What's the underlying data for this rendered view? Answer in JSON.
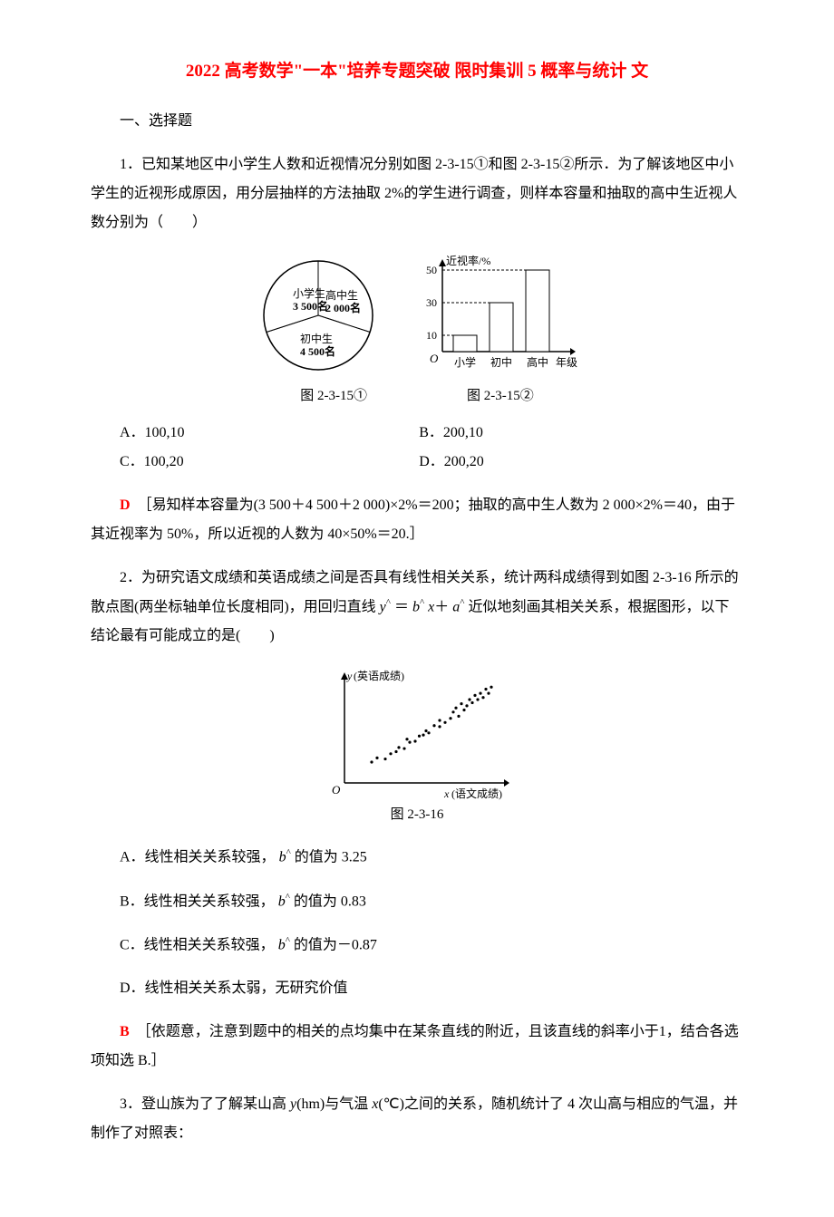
{
  "title": "2022 高考数学\"一本\"培养专题突破 限时集训 5 概率与统计 文",
  "section1": "一、选择题",
  "q1": {
    "stem": "1．已知某地区中小学生人数和近视情况分别如图 2-3-15①和图 2-3-15②所示．为了解该地区中小学生的近视形成原因，用分层抽样的方法抽取 2%的学生进行调查，则样本容量和抽取的高中生近视人数分别为（　　）",
    "pie": {
      "labels": [
        "小学生",
        "高中生",
        "初中生"
      ],
      "counts": [
        "3 500名",
        "2 000名",
        "4 500名"
      ],
      "slice_colors": [
        "#ffffff",
        "#ffffff",
        "#ffffff"
      ],
      "border_color": "#000000"
    },
    "bar": {
      "y_label": "近视率/%",
      "x_label": "年级",
      "x_categories": [
        "小学",
        "初中",
        "高中"
      ],
      "y_ticks": [
        10,
        30,
        50
      ],
      "values": [
        10,
        30,
        50
      ],
      "bar_color": "#ffffff",
      "bar_border": "#000000",
      "axis_color": "#000000",
      "grid_style": "dashed"
    },
    "caption_left": "图 2-3-15①",
    "caption_right": "图 2-3-15②",
    "choices": {
      "A": "A．100,10",
      "B": "B．200,10",
      "C": "C．100,20",
      "D": "D．200,20"
    },
    "answer": "D",
    "explanation": "［易知样本容量为(3 500＋4 500＋2 000)×2%＝200；抽取的高中生人数为 2 000×2%＝40，由于其近视率为 50%，所以近视的人数为 40×50%＝20.］"
  },
  "q2": {
    "stem_pre": "2．为研究语文成绩和英语成绩之间是否具有线性相关关系，统计两科成绩得到如图 2-3-16 所示的散点图(两坐标轴单位长度相同)，用回归直线 ",
    "formula": "y ＝ b x＋ a",
    "stem_post": " 近似地刻画其相关关系，根据图形，以下结论最有可能成立的是(　　)",
    "scatter": {
      "x_label": "x(语文成绩)",
      "y_label": "y(英语成绩)",
      "point_color": "#000000",
      "axis_color": "#000000",
      "points": [
        [
          20,
          20
        ],
        [
          24,
          24
        ],
        [
          30,
          23
        ],
        [
          34,
          28
        ],
        [
          38,
          30
        ],
        [
          40,
          34
        ],
        [
          44,
          33
        ],
        [
          48,
          39
        ],
        [
          46,
          42
        ],
        [
          52,
          40
        ],
        [
          55,
          45
        ],
        [
          58,
          46
        ],
        [
          60,
          50
        ],
        [
          62,
          48
        ],
        [
          66,
          55
        ],
        [
          70,
          54
        ],
        [
          70,
          60
        ],
        [
          74,
          58
        ],
        [
          78,
          62
        ],
        [
          80,
          68
        ],
        [
          84,
          64
        ],
        [
          82,
          72
        ],
        [
          88,
          70
        ],
        [
          86,
          76
        ],
        [
          90,
          74
        ],
        [
          92,
          80
        ],
        [
          94,
          77
        ],
        [
          96,
          84
        ],
        [
          98,
          80
        ],
        [
          100,
          86
        ],
        [
          102,
          82
        ],
        [
          104,
          90
        ],
        [
          106,
          86
        ],
        [
          108,
          92
        ]
      ]
    },
    "caption": "图 2-3-16",
    "choices": {
      "A_pre": "A．线性相关关系较强，",
      "A_post": "b 的值为 3.25",
      "B_pre": "B．线性相关关系较强，",
      "B_post": "b 的值为 0.83",
      "C_pre": "C．线性相关关系较强，",
      "C_post": "b 的值为－0.87",
      "D": "D．线性相关关系太弱，无研究价值"
    },
    "answer": "B",
    "explanation": "［依题意，注意到题中的相关的点均集中在某条直线的附近，且该直线的斜率小于1，结合各选项知选 B.］"
  },
  "q3": {
    "stem": "3．登山族为了了解某山高 y(hm)与气温 x(℃)之间的关系，随机统计了 4 次山高与相应的气温，并制作了对照表："
  }
}
